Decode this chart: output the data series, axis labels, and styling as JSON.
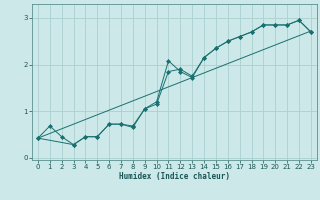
{
  "xlabel": "Humidex (Indice chaleur)",
  "ylabel": "",
  "bg_color": "#cce8e8",
  "line_color": "#1a7070",
  "grid_color": "#aad0d0",
  "xlim": [
    -0.5,
    23.5
  ],
  "ylim": [
    -0.05,
    3.3
  ],
  "xticks": [
    0,
    1,
    2,
    3,
    4,
    5,
    6,
    7,
    8,
    9,
    10,
    11,
    12,
    13,
    14,
    15,
    16,
    17,
    18,
    19,
    20,
    21,
    22,
    23
  ],
  "yticks": [
    0,
    1,
    2,
    3
  ],
  "line1_x": [
    0,
    1,
    2,
    3,
    4,
    5,
    6,
    7,
    8,
    9,
    10,
    11,
    12,
    13,
    14,
    15,
    16,
    17,
    18,
    19,
    20,
    21,
    22,
    23
  ],
  "line1_y": [
    0.42,
    0.68,
    0.45,
    0.28,
    0.45,
    0.45,
    0.72,
    0.72,
    0.68,
    1.05,
    1.2,
    2.08,
    1.85,
    1.72,
    2.15,
    2.35,
    2.5,
    2.6,
    2.7,
    2.85,
    2.85,
    2.85,
    2.95,
    2.7
  ],
  "line2_x": [
    0,
    3,
    4,
    5,
    6,
    7,
    8,
    9,
    10,
    11,
    12,
    13,
    14,
    15,
    16,
    17,
    18,
    19,
    20,
    21,
    22,
    23
  ],
  "line2_y": [
    0.42,
    0.28,
    0.45,
    0.45,
    0.72,
    0.72,
    0.65,
    1.05,
    1.15,
    1.85,
    1.9,
    1.75,
    2.15,
    2.35,
    2.5,
    2.6,
    2.7,
    2.85,
    2.85,
    2.85,
    2.95,
    2.7
  ],
  "line3_x": [
    0,
    23
  ],
  "line3_y": [
    0.42,
    2.72
  ]
}
